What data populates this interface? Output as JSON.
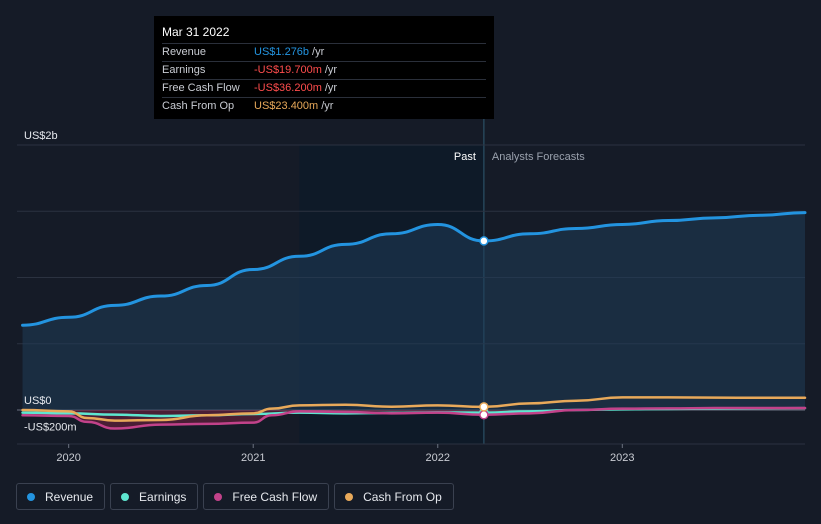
{
  "tooltip": {
    "date": "Mar 31 2022",
    "rows": [
      {
        "label": "Revenue",
        "value": "US$1.276b",
        "unit": "/yr",
        "color": "#2394e0"
      },
      {
        "label": "Earnings",
        "value": "-US$19.700m",
        "unit": "/yr",
        "color": "#ff4d4d"
      },
      {
        "label": "Free Cash Flow",
        "value": "-US$36.200m",
        "unit": "/yr",
        "color": "#ff4d4d"
      },
      {
        "label": "Cash From Op",
        "value": "US$23.400m",
        "unit": "/yr",
        "color": "#e8a95a"
      }
    ]
  },
  "legend": [
    {
      "label": "Revenue",
      "color": "#2394e0"
    },
    {
      "label": "Earnings",
      "color": "#5ee6d0"
    },
    {
      "label": "Free Cash Flow",
      "color": "#c2428a"
    },
    {
      "label": "Cash From Op",
      "color": "#e8a95a"
    }
  ],
  "chart_data": {
    "type": "line",
    "y_ticks": [
      {
        "label": "US$2b",
        "value": 2000
      },
      {
        "label": "US$0",
        "value": 0
      },
      {
        "label": "-US$200m",
        "value": -200
      }
    ],
    "ylim": [
      -250,
      2000
    ],
    "xlim": [
      2019.72,
      2023.99
    ],
    "x_ticks": [
      {
        "label": "2020",
        "value": 2020.0
      },
      {
        "label": "2021",
        "value": 2021.0
      },
      {
        "label": "2022",
        "value": 2022.0
      },
      {
        "label": "2023",
        "value": 2023.0
      }
    ],
    "regions": {
      "past_label": "Past",
      "forecast_label": "Analysts Forecasts",
      "highlight_start": 2021.25,
      "divider": 2022.25
    },
    "series": [
      {
        "name": "Revenue",
        "color": "#2394e0",
        "x": [
          2019.75,
          2020.0,
          2020.25,
          2020.5,
          2020.75,
          2021.0,
          2021.25,
          2021.5,
          2021.75,
          2022.0,
          2022.25,
          2022.5,
          2022.75,
          2023.0,
          2023.25,
          2023.5,
          2023.75,
          2023.99
        ],
        "y": [
          640,
          700,
          790,
          860,
          940,
          1060,
          1160,
          1250,
          1330,
          1400,
          1276,
          1330,
          1370,
          1400,
          1430,
          1450,
          1470,
          1490
        ]
      },
      {
        "name": "Earnings",
        "color": "#5ee6d0",
        "x": [
          2019.75,
          2020.0,
          2020.25,
          2020.5,
          2020.75,
          2021.0,
          2021.25,
          2021.5,
          2021.75,
          2022.0,
          2022.25,
          2022.5,
          2022.75,
          2023.0,
          2023.25,
          2023.5,
          2023.75,
          2023.99
        ],
        "y": [
          -20,
          -25,
          -35,
          -45,
          -40,
          -30,
          -20,
          -25,
          -22,
          -18,
          -19.7,
          -10,
          0,
          5,
          8,
          10,
          12,
          14
        ]
      },
      {
        "name": "Free Cash Flow",
        "color": "#c2428a",
        "x": [
          2019.75,
          2020.0,
          2020.1,
          2020.25,
          2020.5,
          2020.75,
          2021.0,
          2021.1,
          2021.25,
          2021.5,
          2021.75,
          2022.0,
          2022.25,
          2022.5,
          2022.75,
          2023.0,
          2023.25,
          2023.5,
          2023.75,
          2023.99
        ],
        "y": [
          -40,
          -45,
          -90,
          -140,
          -110,
          -105,
          -95,
          -40,
          -10,
          -15,
          -25,
          -20,
          -36.2,
          -25,
          0,
          10,
          12,
          15,
          15,
          15
        ],
        "fill_color": "#8c2448"
      },
      {
        "name": "Cash From Op",
        "color": "#e8a95a",
        "x": [
          2019.75,
          2020.0,
          2020.1,
          2020.25,
          2020.5,
          2020.75,
          2021.0,
          2021.1,
          2021.25,
          2021.5,
          2021.75,
          2022.0,
          2022.25,
          2022.5,
          2022.75,
          2023.0,
          2023.25,
          2023.5,
          2023.75,
          2023.99
        ],
        "y": [
          0,
          -10,
          -60,
          -80,
          -75,
          -40,
          -25,
          10,
          35,
          40,
          25,
          35,
          23.4,
          50,
          70,
          95,
          95,
          93,
          92,
          92
        ]
      }
    ],
    "tooltip_x": 2022.25
  }
}
